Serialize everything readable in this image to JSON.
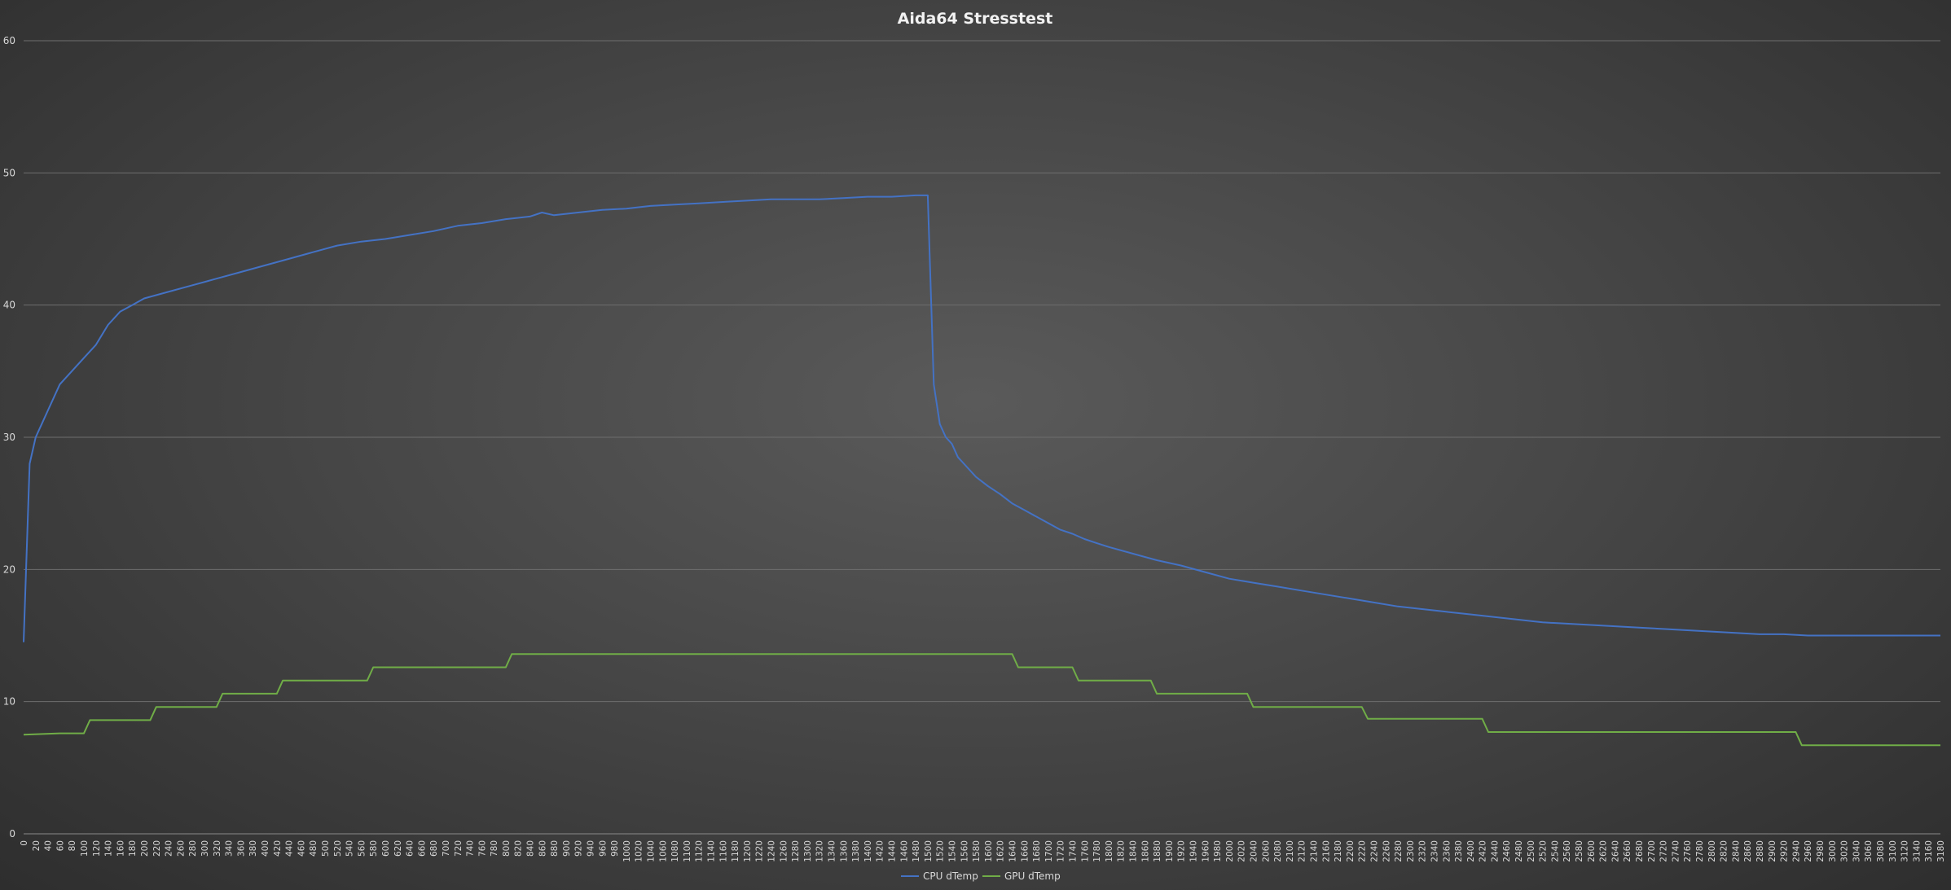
{
  "chart_data": {
    "type": "line",
    "title": "Aida64 Stresstest",
    "xlabel": "",
    "ylabel": "",
    "ylim": [
      0,
      60
    ],
    "yticks": [
      0,
      10,
      20,
      30,
      40,
      50,
      60
    ],
    "xlim": [
      0,
      3180
    ],
    "xtick_step": 20,
    "grid": true,
    "legend_position": "bottom-center",
    "series": [
      {
        "name": "CPU dTemp",
        "color": "#4472c4",
        "x": [
          0,
          10,
          20,
          30,
          40,
          50,
          60,
          80,
          100,
          120,
          140,
          160,
          180,
          200,
          240,
          280,
          320,
          360,
          400,
          440,
          480,
          520,
          560,
          600,
          640,
          680,
          720,
          760,
          800,
          840,
          860,
          880,
          920,
          960,
          1000,
          1040,
          1080,
          1120,
          1160,
          1200,
          1240,
          1280,
          1320,
          1360,
          1400,
          1440,
          1480,
          1500,
          1510,
          1520,
          1530,
          1540,
          1550,
          1560,
          1580,
          1600,
          1620,
          1640,
          1660,
          1680,
          1700,
          1720,
          1740,
          1760,
          1780,
          1800,
          1840,
          1880,
          1920,
          1960,
          2000,
          2040,
          2080,
          2120,
          2160,
          2200,
          2240,
          2280,
          2320,
          2360,
          2400,
          2440,
          2480,
          2520,
          2560,
          2600,
          2640,
          2680,
          2720,
          2760,
          2800,
          2840,
          2880,
          2920,
          2960,
          3000,
          3040,
          3080,
          3120,
          3160,
          3180
        ],
        "values": [
          14.5,
          28,
          30,
          31,
          32,
          33,
          34,
          35,
          36,
          37,
          38.5,
          39.5,
          40,
          40.5,
          41,
          41.5,
          42,
          42.5,
          43,
          43.5,
          44,
          44.5,
          44.8,
          45,
          45.3,
          45.6,
          46,
          46.2,
          46.5,
          46.7,
          47,
          46.8,
          47,
          47.2,
          47.3,
          47.5,
          47.6,
          47.7,
          47.8,
          47.9,
          48,
          48,
          48,
          48.1,
          48.2,
          48.2,
          48.3,
          48.3,
          34,
          31,
          30,
          29.5,
          28.5,
          28,
          27,
          26.3,
          25.7,
          25,
          24.5,
          24,
          23.5,
          23,
          22.7,
          22.3,
          22,
          21.7,
          21.2,
          20.7,
          20.3,
          19.8,
          19.3,
          19,
          18.7,
          18.4,
          18.1,
          17.8,
          17.5,
          17.2,
          17,
          16.8,
          16.6,
          16.4,
          16.2,
          16,
          15.9,
          15.8,
          15.7,
          15.6,
          15.5,
          15.4,
          15.3,
          15.2,
          15.1,
          15.1,
          15,
          15,
          15,
          15,
          15,
          15,
          15
        ]
      },
      {
        "name": "GPU dTemp",
        "color": "#70ad47",
        "x": [
          0,
          60,
          100,
          110,
          210,
          220,
          320,
          330,
          420,
          430,
          570,
          580,
          800,
          810,
          1640,
          1650,
          1740,
          1750,
          1870,
          1880,
          2030,
          2040,
          2220,
          2230,
          2420,
          2430,
          2940,
          2950,
          3180
        ],
        "values": [
          7.5,
          7.6,
          7.6,
          8.6,
          8.6,
          9.6,
          9.6,
          10.6,
          10.6,
          11.6,
          11.6,
          12.6,
          12.6,
          13.6,
          13.6,
          12.6,
          12.6,
          11.6,
          11.6,
          10.6,
          10.6,
          9.6,
          9.6,
          8.7,
          8.7,
          7.7,
          7.7,
          6.7,
          6.7
        ]
      }
    ]
  }
}
